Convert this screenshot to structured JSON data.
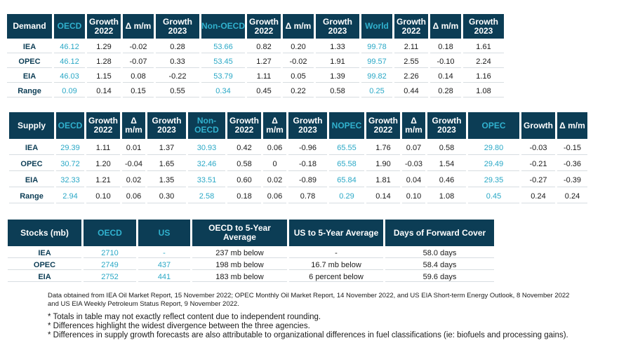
{
  "demand": {
    "headers": [
      "Demand",
      "OECD",
      "Growth 2022",
      "Δ m/m",
      "Growth 2023",
      "Non-OECD",
      "Growth 2022",
      "Δ m/m",
      "Growth 2023",
      "World",
      "Growth 2022",
      "Δ m/m",
      "Growth 2023"
    ],
    "rows": [
      [
        "IEA",
        "46.12",
        "1.29",
        "-0.02",
        "0.28",
        "53.66",
        "0.82",
        "0.20",
        "1.33",
        "99.78",
        "2.11",
        "0.18",
        "1.61"
      ],
      [
        "OPEC",
        "46.12",
        "1.28",
        "-0.07",
        "0.33",
        "53.45",
        "1.27",
        "-0.02",
        "1.91",
        "99.57",
        "2.55",
        "-0.10",
        "2.24"
      ],
      [
        "EIA",
        "46.03",
        "1.15",
        "0.08",
        "-0.22",
        "53.79",
        "1.11",
        "0.05",
        "1.39",
        "99.82",
        "2.26",
        "0.14",
        "1.16"
      ],
      [
        "Range",
        "0.09",
        "0.14",
        "0.15",
        "0.55",
        "0.34",
        "0.45",
        "0.22",
        "0.58",
        "0.25",
        "0.44",
        "0.28",
        "1.08"
      ]
    ]
  },
  "supply": {
    "headers": [
      "Supply",
      "OECD",
      "Growth 2022",
      "Δ m/m",
      "Growth 2023",
      "Non-OECD",
      "Growth 2022",
      "Δ m/m",
      "Growth 2023",
      "NOPEC",
      "Growth 2022",
      "Δ m/m",
      "Growth 2023",
      "OPEC",
      "Growth",
      "Δ m/m"
    ],
    "rows": [
      [
        "IEA",
        "29.39",
        "1.11",
        "0.01",
        "1.37",
        "30.93",
        "0.42",
        "0.06",
        "-0.96",
        "65.55",
        "1.76",
        "0.07",
        "0.58",
        "29.80",
        "-0.03",
        "-0.15"
      ],
      [
        "OPEC",
        "30.72",
        "1.20",
        "-0.04",
        "1.65",
        "32.46",
        "0.58",
        "0",
        "-0.18",
        "65.58",
        "1.90",
        "-0.03",
        "1.54",
        "29.49",
        "-0.21",
        "-0.36"
      ],
      [
        "EIA",
        "32.33",
        "1.21",
        "0.02",
        "1.35",
        "33.51",
        "0.60",
        "0.02",
        "-0.89",
        "65.84",
        "1.81",
        "0.04",
        "0.46",
        "29.35",
        "-0.27",
        "-0.39"
      ],
      [
        "Range",
        "2.94",
        "0.10",
        "0.06",
        "0.30",
        "2.58",
        "0.18",
        "0.06",
        "0.78",
        "0.29",
        "0.14",
        "0.10",
        "1.08",
        "0.45",
        "0.24",
        "0.24"
      ]
    ]
  },
  "stocks": {
    "headers": [
      "Stocks (mb)",
      "OECD",
      "US",
      "OECD to 5-Year Average",
      "US to 5-Year Average",
      "Days of Forward Cover"
    ],
    "rows": [
      [
        "IEA",
        "2710",
        "-",
        "237 mb below",
        "-",
        "58.0 days"
      ],
      [
        "OPEC",
        "2749",
        "437",
        "198 mb below",
        "16.7 mb below",
        "58.4 days"
      ],
      [
        "EIA",
        "2752",
        "441",
        "183 mb below",
        "6 percent below",
        "59.6 days"
      ]
    ]
  },
  "source_text": "Data obtained from IEA Oil Market Report, 15 November 2022; OPEC Monthly Oil Market Report, 14 November 2022, and US EIA Short-term Energy Outlook, 8 November 2022 and US EIA Weekly Petroleum Status Report, 9 November 2022.",
  "notes": [
    "* Totals in table may not exactly reflect content due to independent rounding.",
    "* Differences highlight the widest divergence between the three agencies.",
    "* Differences in supply growth forecasts are also attributable to organizational differences in fuel classifications (ie: biofuels and processing gains)."
  ],
  "colors": {
    "header_bg": "#0c3d55",
    "accent": "#31b2cf",
    "header_text": "#ffffff"
  }
}
